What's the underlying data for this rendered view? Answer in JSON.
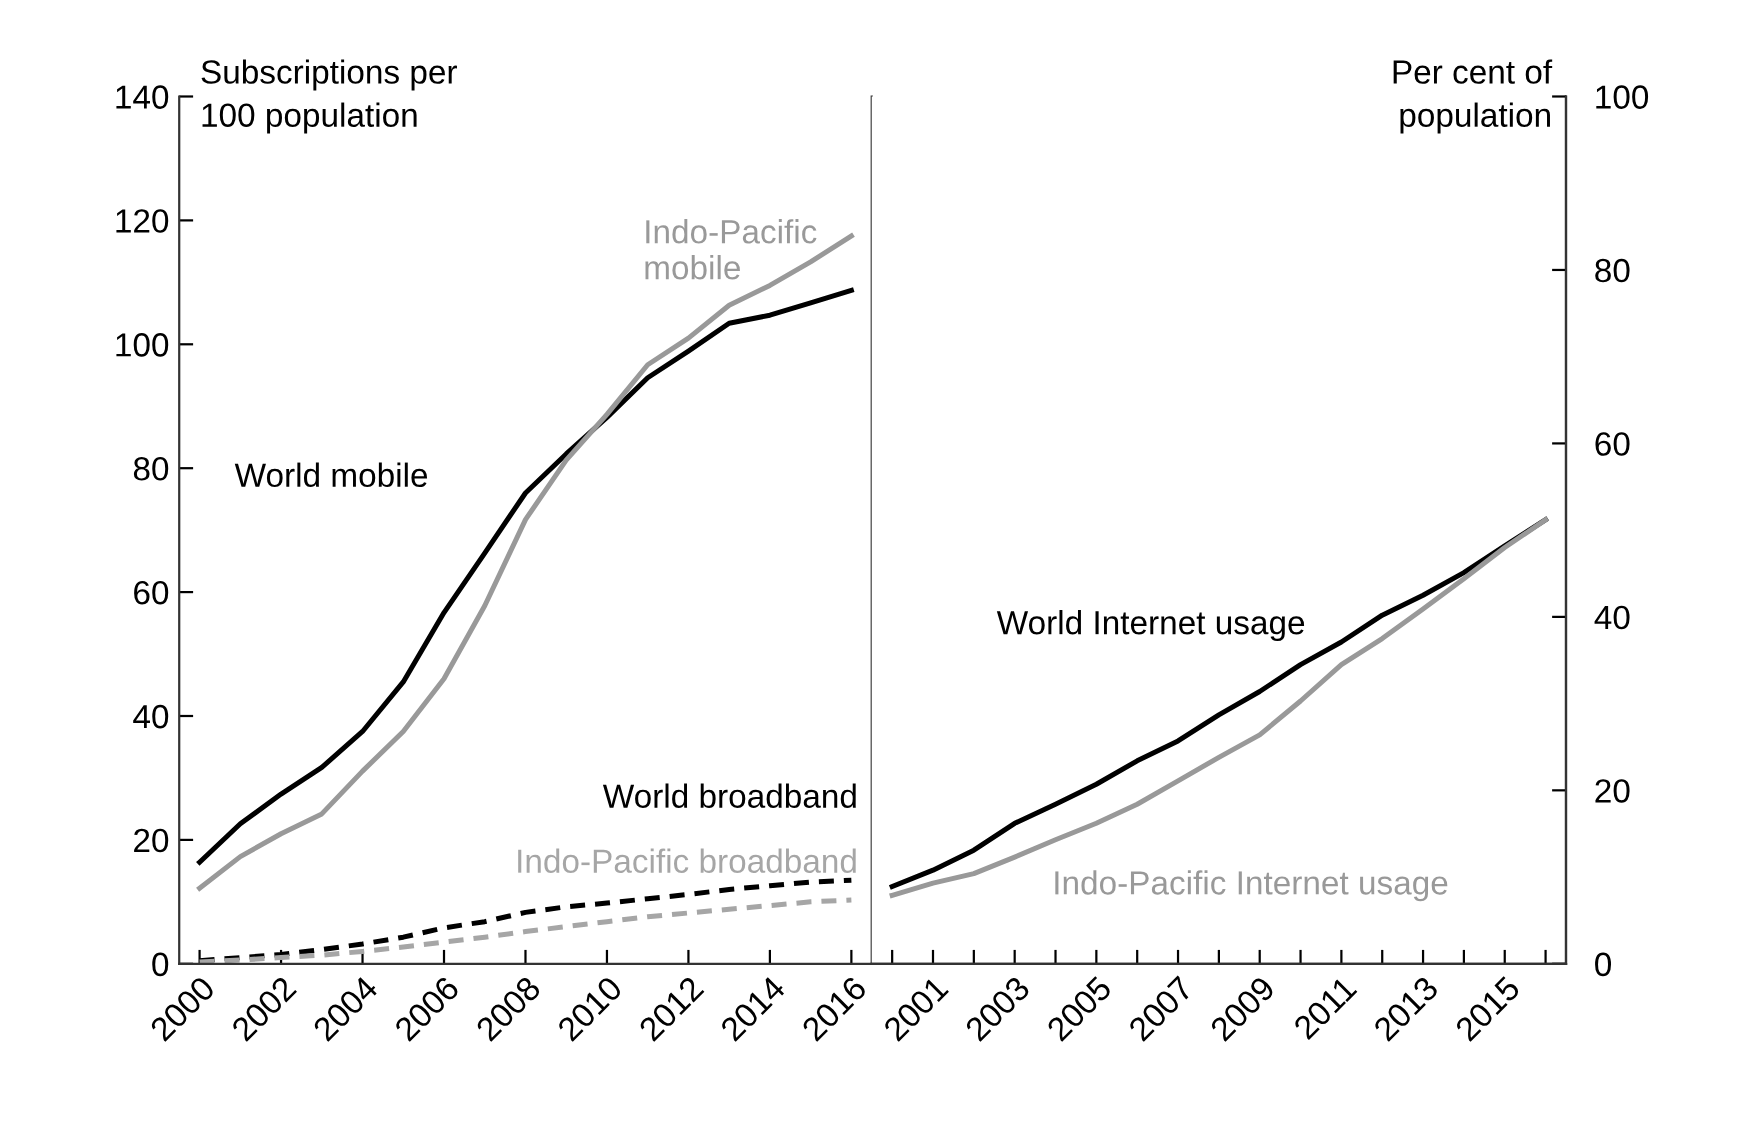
{
  "chart_data": [
    {
      "type": "line",
      "ylabel": "Subscriptions per\n100 population",
      "x": [
        2000,
        2001,
        2002,
        2003,
        2004,
        2005,
        2006,
        2007,
        2008,
        2009,
        2010,
        2011,
        2012,
        2013,
        2014,
        2015,
        2016
      ],
      "xlim": [
        1999.5,
        2016.5
      ],
      "xticks": [
        2000,
        2002,
        2004,
        2006,
        2008,
        2010,
        2012,
        2014,
        2016
      ],
      "ylim": [
        0,
        140
      ],
      "yticks": [
        0,
        20,
        40,
        60,
        80,
        100,
        120,
        140
      ],
      "grid": false,
      "legend": false,
      "series": [
        {
          "name": "World mobile",
          "color": "#000000",
          "line_style": "solid",
          "values": [
            16.4,
            22.6,
            27.4,
            31.7,
            37.5,
            45.5,
            56.7,
            66.3,
            76,
            82.3,
            88.2,
            94.6,
            98.9,
            103.4,
            104.7,
            106.7,
            108.7
          ]
        },
        {
          "name": "Indo-Pacific\nmobile",
          "color": "#999999",
          "line_style": "solid",
          "values": [
            12.2,
            17.3,
            21,
            24.2,
            31.1,
            37.5,
            46,
            57.8,
            71.7,
            81.3,
            88.7,
            96.7,
            101,
            106.3,
            109.5,
            113.3,
            117.5
          ]
        },
        {
          "name": "World broadband",
          "color": "#000000",
          "line_style": "dashed",
          "values": [
            0.5,
            1,
            1.5,
            2.3,
            3.2,
            4.3,
            5.8,
            6.8,
            8.3,
            9.2,
            9.8,
            10.5,
            11.2,
            12,
            12.6,
            13.2,
            13.5
          ]
        },
        {
          "name": "Indo-Pacific broadband",
          "color": "#a6a6a6",
          "line_style": "dashed",
          "values": [
            0.3,
            0.6,
            1,
            1.4,
            2,
            2.7,
            3.5,
            4.3,
            5.2,
            6,
            6.8,
            7.6,
            8.2,
            8.8,
            9.4,
            10,
            10.3
          ]
        }
      ]
    },
    {
      "type": "line",
      "y2label": "Per cent of\npopulation",
      "x": [
        2000,
        2001,
        2002,
        2003,
        2004,
        2005,
        2006,
        2007,
        2008,
        2009,
        2010,
        2011,
        2012,
        2013,
        2014,
        2015,
        2016
      ],
      "xlim": [
        1999.5,
        2016.5
      ],
      "xticks": [
        {
          "value": 2000,
          "label": null
        },
        2001,
        {
          "value": 2002,
          "label": null
        },
        2003,
        {
          "value": 2004,
          "label": null
        },
        2005,
        {
          "value": 2006,
          "label": null
        },
        2007,
        {
          "value": 2008,
          "label": null
        },
        2009,
        {
          "value": 2010,
          "label": null
        },
        2011,
        {
          "value": 2012,
          "label": null
        },
        2013,
        {
          "value": 2014,
          "label": null
        },
        2015,
        {
          "value": 2016,
          "label": null
        }
      ],
      "y2lim": [
        0,
        100
      ],
      "y2ticks": [
        0,
        20,
        40,
        60,
        80,
        100
      ],
      "grid": false,
      "legend": false,
      "series": [
        {
          "name": "World Internet usage",
          "color": "#000000",
          "axis": "y2",
          "line_style": "solid",
          "values": [
            8.9,
            10.8,
            13.1,
            16.2,
            18.4,
            20.7,
            23.4,
            25.7,
            28.7,
            31.4,
            34.5,
            37.1,
            40.2,
            42.5,
            45.1,
            48.2,
            51.2
          ]
        },
        {
          "name": "Indo-Pacific Internet usage",
          "color": "#999999",
          "axis": "y2",
          "line_style": "solid",
          "values": [
            7.9,
            9.3,
            10.4,
            12.3,
            14.3,
            16.2,
            18.4,
            21.1,
            23.8,
            26.4,
            30.3,
            34.5,
            37.5,
            40.9,
            44.4,
            48,
            51.2
          ]
        }
      ]
    }
  ]
}
